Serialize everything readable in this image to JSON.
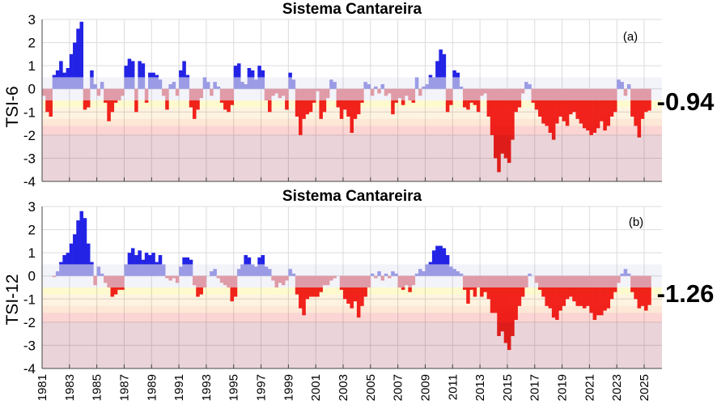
{
  "colors": {
    "strong_wet": "#2323e6",
    "weak_wet": "#a3a3ea",
    "weak_dry": "#eaa3aa",
    "strong_dry": "#f2231f",
    "band_normal": "#e9e9f5",
    "band_d0": "#fbf6a6",
    "band_d1": "#fde9c9",
    "band_d2": "#fbd3b4",
    "band_d3": "#f7b3b1",
    "band_d4": "#d8b1b9",
    "grid": "#dcdcdc"
  },
  "x_axis": {
    "ticks": [
      "1981",
      "1983",
      "1985",
      "1987",
      "1989",
      "1991",
      "1993",
      "1995",
      "1997",
      "1999",
      "2001",
      "2003",
      "2005",
      "2007",
      "2009",
      "2011",
      "2013",
      "2015",
      "2017",
      "2019",
      "2021",
      "2023",
      "2025"
    ],
    "xlim": [
      1981,
      2026.3
    ]
  },
  "chart_data": [
    {
      "type": "bar",
      "title": "Sistema Cantareira",
      "panel_label": "(a)",
      "ylabel": "TSI-6",
      "ylim": [
        -4,
        3
      ],
      "yticks": [
        "3",
        "2",
        "1",
        "0",
        "-1",
        "-2",
        "-3",
        "-4"
      ],
      "latest_value_label": "-0.94",
      "bands": [
        [
          0.5,
          -0.5
        ],
        [
          -0.5,
          -0.8
        ],
        [
          -0.8,
          -1.3
        ],
        [
          -1.3,
          -1.6
        ],
        [
          -1.6,
          -2.0
        ],
        [
          -2.0,
          -4.0
        ]
      ],
      "x_start": 1981.0,
      "x_step": 0.25,
      "values": [
        -0.3,
        -1.0,
        -1.2,
        0.6,
        0.8,
        1.2,
        0.7,
        0.9,
        1.5,
        2.0,
        2.6,
        2.9,
        -0.9,
        -0.8,
        0.8,
        0.2,
        -0.3,
        0.3,
        -0.6,
        -1.4,
        -1.0,
        -0.6,
        -0.5,
        -0.3,
        1.0,
        1.3,
        1.2,
        -1.0,
        1.2,
        1.1,
        -0.6,
        0.7,
        0.7,
        0.6,
        0.4,
        -0.3,
        -0.9,
        0.2,
        0.3,
        -0.3,
        0.8,
        1.2,
        0.6,
        -0.8,
        -1.3,
        -0.9,
        -0.4,
        0.5,
        0.3,
        -0.3,
        0.3,
        0.1,
        -0.6,
        -0.9,
        -1.0,
        -0.7,
        1.0,
        1.1,
        0.3,
        0.2,
        0.9,
        0.8,
        0.4,
        1.0,
        0.8,
        -0.5,
        -1.0,
        -0.3,
        -0.2,
        -0.4,
        -0.3,
        -0.9,
        0.7,
        0.4,
        -1.2,
        -2.0,
        -1.3,
        -1.1,
        -1.0,
        -0.6,
        -0.1,
        -1.3,
        -1.0,
        -0.4,
        0.4,
        0.3,
        -0.8,
        -1.3,
        -0.9,
        -1.2,
        -1.9,
        -1.3,
        -1.1,
        -0.6,
        0.3,
        0.2,
        -0.3,
        0.1,
        -0.2,
        0.2,
        -0.3,
        -0.2,
        -1.1,
        -0.6,
        -0.4,
        -0.7,
        -0.3,
        -0.5,
        -0.6,
        0.5,
        -0.3,
        0.1,
        0.2,
        0.6,
        0.5,
        1.2,
        1.7,
        1.5,
        -1.0,
        -0.7,
        0.8,
        0.7,
        0.1,
        -0.8,
        -0.9,
        -0.6,
        -0.7,
        -1.0,
        -0.3,
        -0.2,
        -1.2,
        -2.0,
        -3.0,
        -3.6,
        -2.8,
        -3.0,
        -3.2,
        -2.2,
        -1.0,
        -0.8,
        -0.2,
        0.3,
        0.2,
        -0.6,
        -0.9,
        -1.2,
        -1.5,
        -1.6,
        -1.9,
        -2.2,
        -1.5,
        -1.2,
        -1.4,
        -1.6,
        -1.1,
        -1.0,
        -1.3,
        -1.5,
        -1.7,
        -1.8,
        -2.0,
        -1.9,
        -1.7,
        -1.4,
        -1.8,
        -1.6,
        -1.2,
        -1.0,
        0.4,
        0.3,
        -0.3,
        0.2,
        -1.2,
        -1.6,
        -2.1,
        -1.3,
        -1.0,
        -0.94
      ]
    },
    {
      "type": "bar",
      "title": "Sistema Cantareira",
      "panel_label": "(b)",
      "ylabel": "TSI-12",
      "ylim": [
        -4,
        3
      ],
      "yticks": [
        "3",
        "2",
        "1",
        "0",
        "-1",
        "-2",
        "-3",
        "-4"
      ],
      "latest_value_label": "-1.26",
      "bands": [
        [
          0.5,
          -0.5
        ],
        [
          -0.5,
          -0.8
        ],
        [
          -0.8,
          -1.3
        ],
        [
          -1.3,
          -1.6
        ],
        [
          -1.6,
          -2.0
        ],
        [
          -2.0,
          -4.0
        ]
      ],
      "x_start": 1981.0,
      "x_step": 0.25,
      "values": [
        0,
        0,
        0,
        -0.05,
        0.2,
        0.6,
        0.9,
        1.0,
        1.4,
        1.8,
        2.4,
        2.8,
        2.5,
        1.4,
        0.6,
        -0.4,
        0.4,
        0.1,
        -0.3,
        -0.5,
        -0.9,
        -0.8,
        -0.6,
        -0.6,
        0.5,
        1.0,
        1.2,
        0.9,
        1.1,
        0.7,
        1.0,
        0.9,
        1.0,
        0.6,
        0.9,
        0.5,
        -0.1,
        -0.2,
        -0.1,
        -0.3,
        0.4,
        0.8,
        0.8,
        0.7,
        -0.4,
        -0.9,
        -0.8,
        -0.5,
        0.0,
        0.2,
        0.3,
        -0.1,
        -0.3,
        -0.4,
        -0.5,
        -1.1,
        -0.9,
        0.3,
        0.5,
        0.9,
        0.8,
        0.5,
        0.4,
        0.8,
        0.9,
        0.4,
        0.3,
        -0.2,
        -0.5,
        -0.3,
        -0.4,
        -0.2,
        0.3,
        0.1,
        -0.8,
        -1.4,
        -1.7,
        -1.0,
        -0.9,
        -0.9,
        -0.9,
        -0.7,
        -0.4,
        -0.4,
        -0.2,
        -0.1,
        0.0,
        -0.6,
        -1.0,
        -1.2,
        -1.4,
        -1.1,
        -1.8,
        -1.3,
        -0.9,
        -0.5,
        0.1,
        -0.1,
        0.2,
        -0.2,
        0.1,
        -0.1,
        0.2,
        0.1,
        -0.5,
        -0.6,
        -0.4,
        -0.7,
        -0.4,
        0.1,
        0.3,
        0.2,
        0.5,
        0.6,
        1.1,
        1.3,
        1.3,
        1.2,
        0.9,
        0.4,
        0.3,
        0.2,
        0.1,
        -0.6,
        -1.2,
        -0.6,
        -0.9,
        -0.5,
        -0.9,
        -0.7,
        -1.0,
        -1.6,
        -1.6,
        -2.6,
        -2.4,
        -2.9,
        -3.2,
        -2.6,
        -1.9,
        -1.3,
        -0.9,
        -0.5,
        0.1,
        0.0,
        -0.3,
        -0.6,
        -0.9,
        -1.3,
        -1.4,
        -1.8,
        -1.9,
        -1.5,
        -1.3,
        -1.0,
        -0.9,
        -1.1,
        -1.3,
        -1.3,
        -1.4,
        -1.3,
        -1.6,
        -1.9,
        -1.7,
        -1.7,
        -1.5,
        -1.4,
        -1.0,
        -0.7,
        -0.3,
        0.1,
        0.3,
        0.1,
        -0.7,
        -1.0,
        -1.4,
        -1.3,
        -1.5,
        -1.26
      ]
    }
  ]
}
